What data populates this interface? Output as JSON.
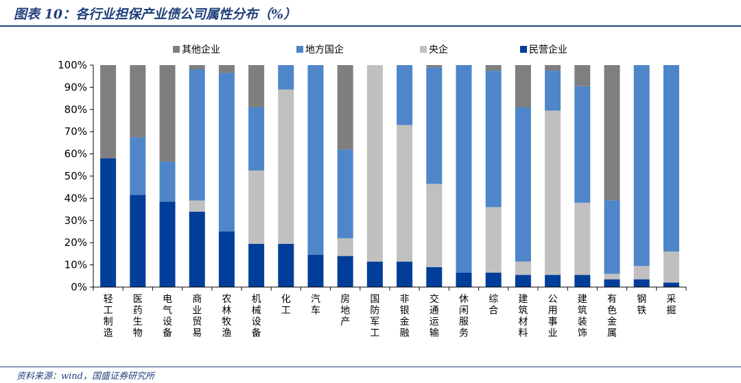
{
  "figure": {
    "title": "图表 10：各行业担保产业债公司属性分布（%）",
    "source": "资料来源：wind，国盛证券研究所"
  },
  "chart_data": {
    "type": "bar",
    "stacked": true,
    "categories": [
      "轻工制造",
      "医药生物",
      "电气设备",
      "商业贸易",
      "农林牧渔",
      "机械设备",
      "化工",
      "汽车",
      "房地产",
      "国防军工",
      "非银金融",
      "交通运输",
      "休闲服务",
      "综合",
      "建筑材料",
      "公用事业",
      "建筑装饰",
      "有色金属",
      "钢铁",
      "采掘"
    ],
    "series": [
      {
        "name": "民营企业",
        "color": "#003e9a",
        "values": [
          58,
          41.5,
          38.5,
          34,
          25,
          19.5,
          19.5,
          14.5,
          14,
          11.5,
          11.5,
          9,
          6.5,
          6.5,
          5.5,
          5.5,
          5.5,
          3.5,
          3.5,
          2
        ]
      },
      {
        "name": "央企",
        "color": "#c0c0c0",
        "values": [
          0,
          0,
          0,
          5,
          0,
          33,
          69.5,
          0,
          8,
          88.5,
          61.5,
          37.5,
          0,
          29.5,
          6,
          74,
          32.5,
          2.5,
          6,
          14
        ]
      },
      {
        "name": "地方国企",
        "color": "#4e86c9",
        "values": [
          0,
          26,
          18,
          59,
          71.5,
          28.5,
          11,
          85.5,
          40,
          0,
          27,
          52.5,
          93.5,
          61.5,
          69.5,
          18,
          52.5,
          33,
          90.5,
          84
        ]
      },
      {
        "name": "其他企业",
        "color": "#7f7f7f",
        "values": [
          42,
          32.5,
          43.5,
          2,
          3.5,
          19,
          0,
          0,
          38,
          0,
          0,
          1,
          0,
          2.5,
          19,
          2.5,
          9.5,
          61,
          0,
          0
        ]
      }
    ],
    "legend_order": [
      "其他企业",
      "地方国企",
      "央企",
      "民营企业"
    ],
    "legend_position": "top",
    "ylim": [
      0,
      100
    ],
    "yticks": [
      "0%",
      "10%",
      "20%",
      "30%",
      "40%",
      "50%",
      "60%",
      "70%",
      "80%",
      "90%",
      "100%"
    ],
    "grid": false
  }
}
